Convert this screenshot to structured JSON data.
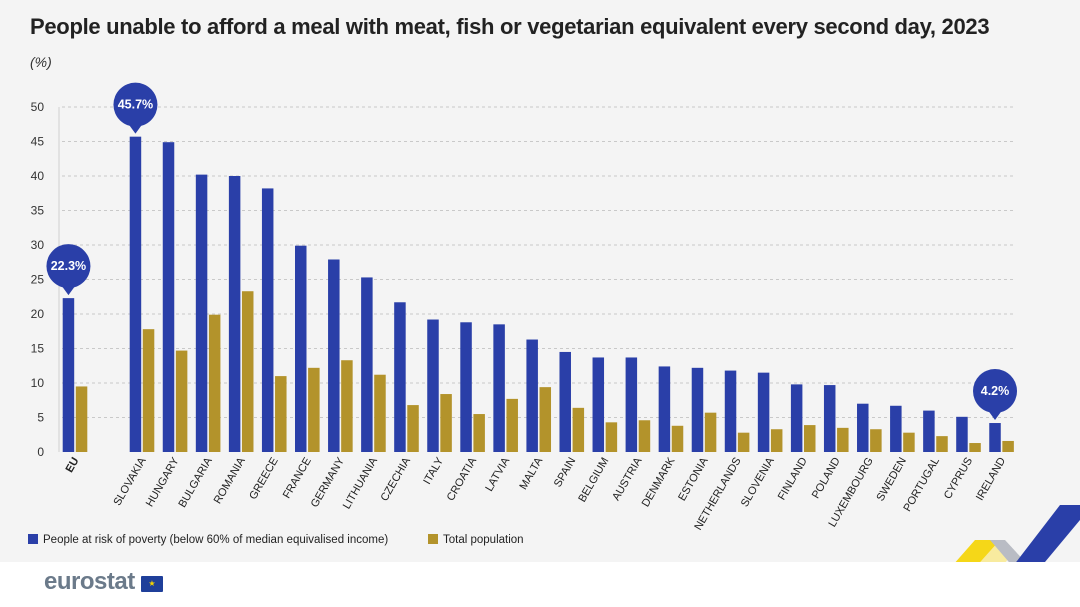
{
  "title": "People unable to afford a meal with meat, fish or vegetarian equivalent every second day, 2023",
  "unit": "(%)",
  "brand": "eurostat",
  "colors": {
    "poverty": "#2a3fa8",
    "total": "#b3932b",
    "callout": "#2a3fa8",
    "grid": "#c9c9c9",
    "axis_text": "#333333"
  },
  "chart_data": {
    "type": "bar",
    "ylim": [
      0,
      50
    ],
    "yticks": [
      0,
      5,
      10,
      15,
      20,
      25,
      30,
      35,
      40,
      45,
      50
    ],
    "categories": [
      "EU",
      "SLOVAKIA",
      "HUNGARY",
      "BULGARIA",
      "ROMANIA",
      "GREECE",
      "FRANCE",
      "GERMANY",
      "LITHUANIA",
      "CZECHIA",
      "ITALY",
      "CROATIA",
      "LATVIA",
      "MALTA",
      "SPAIN",
      "BELGIUM",
      "AUSTRIA",
      "DENMARK",
      "ESTONIA",
      "NETHERLANDS",
      "SLOVENIA",
      "FINLAND",
      "POLAND",
      "LUXEMBOURG",
      "SWEDEN",
      "PORTUGAL",
      "CYPRUS",
      "IRELAND"
    ],
    "series": [
      {
        "name": "People at risk of poverty (below 60% of median equivalised income)",
        "values": [
          22.3,
          45.7,
          44.9,
          40.2,
          40.0,
          38.2,
          29.9,
          27.9,
          25.3,
          21.7,
          19.2,
          18.8,
          18.5,
          16.3,
          14.5,
          13.7,
          13.7,
          12.4,
          12.2,
          11.8,
          11.5,
          9.8,
          9.7,
          7.0,
          6.7,
          6.0,
          5.1,
          4.2
        ]
      },
      {
        "name": "Total population",
        "values": [
          9.5,
          17.8,
          14.7,
          19.9,
          23.3,
          11.0,
          12.2,
          13.3,
          11.2,
          6.8,
          8.4,
          5.5,
          7.7,
          9.4,
          6.4,
          4.3,
          4.6,
          3.8,
          5.7,
          2.8,
          3.3,
          3.9,
          3.5,
          3.3,
          2.8,
          2.3,
          1.3,
          1.6
        ]
      }
    ],
    "annotations": [
      {
        "category": "EU",
        "series": 0,
        "text": "22.3%"
      },
      {
        "category": "SLOVAKIA",
        "series": 0,
        "text": "45.7%"
      },
      {
        "category": "IRELAND",
        "series": 0,
        "text": "4.2%"
      }
    ],
    "bold_categories": [
      "EU"
    ],
    "legend_position": "bottom-left",
    "grid": true
  }
}
